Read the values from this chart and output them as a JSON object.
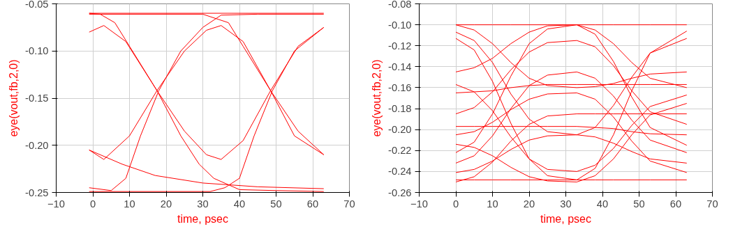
{
  "chart_data": [
    {
      "type": "line",
      "xlabel": "time, psec",
      "ylabel": "eye(vout,fb,2,0)",
      "xlim": [
        -10,
        70
      ],
      "ylim": [
        -0.25,
        -0.05
      ],
      "xticks": [
        -10,
        0,
        10,
        20,
        30,
        40,
        50,
        60,
        70
      ],
      "yticks": [
        {
          "value": -0.25,
          "label": "-0.25"
        },
        {
          "value": -0.2,
          "label": "-0.20"
        },
        {
          "value": -0.15,
          "label": "-0.15"
        },
        {
          "value": -0.1,
          "label": "-0.10"
        },
        {
          "value": -0.05,
          "label": "-0.05"
        }
      ],
      "grid": true,
      "series": [
        {
          "color": "#ff0000",
          "x": [
            -1,
            3,
            9,
            17.5,
            25,
            31,
            35,
            41,
            48.5,
            56,
            63
          ],
          "values": [
            -0.08,
            -0.073,
            -0.09,
            -0.142,
            -0.185,
            -0.21,
            -0.215,
            -0.195,
            -0.142,
            -0.095,
            -0.075
          ]
        },
        {
          "color": "#ff0000",
          "x": [
            -1,
            3,
            10,
            17.5,
            25,
            31,
            35,
            41,
            48.5,
            56,
            63
          ],
          "values": [
            -0.205,
            -0.215,
            -0.19,
            -0.142,
            -0.1,
            -0.078,
            -0.073,
            -0.09,
            -0.142,
            -0.185,
            -0.21
          ]
        },
        {
          "color": "#ff0000",
          "x": [
            -1,
            5,
            9,
            13,
            18,
            24,
            30,
            35,
            45,
            63
          ],
          "values": [
            -0.245,
            -0.248,
            -0.235,
            -0.19,
            -0.142,
            -0.1,
            -0.075,
            -0.062,
            -0.061,
            -0.061
          ]
        },
        {
          "color": "#ff0000",
          "x": [
            -1,
            2,
            6,
            10,
            17.5,
            24,
            29,
            33,
            40,
            50,
            63
          ],
          "values": [
            -0.06,
            -0.061,
            -0.07,
            -0.095,
            -0.142,
            -0.19,
            -0.22,
            -0.235,
            -0.247,
            -0.248,
            -0.249
          ]
        },
        {
          "color": "#ff0000",
          "x": [
            -1,
            8,
            17,
            30,
            45,
            63
          ],
          "values": [
            -0.205,
            -0.22,
            -0.232,
            -0.24,
            -0.244,
            -0.246
          ]
        },
        {
          "color": "#ff0000",
          "x": [
            -1,
            20,
            32,
            36,
            40,
            44,
            49,
            55,
            63
          ],
          "values": [
            -0.249,
            -0.249,
            -0.249,
            -0.245,
            -0.235,
            -0.19,
            -0.142,
            -0.1,
            -0.075
          ]
        },
        {
          "color": "#ff0000",
          "x": [
            -1,
            30,
            37,
            41,
            48.5,
            55,
            63
          ],
          "values": [
            -0.061,
            -0.061,
            -0.07,
            -0.095,
            -0.142,
            -0.19,
            -0.21
          ]
        },
        {
          "color": "#ff0000",
          "x": [
            -1,
            63
          ],
          "values": [
            -0.06,
            -0.06
          ]
        }
      ]
    },
    {
      "type": "line",
      "xlabel": "time, psec",
      "ylabel": "eye(vout,fb,2,0)",
      "xlim": [
        -10,
        70
      ],
      "ylim": [
        -0.26,
        -0.08
      ],
      "xticks": [
        -10,
        0,
        10,
        20,
        30,
        40,
        50,
        60,
        70
      ],
      "yticks": [
        {
          "value": -0.26,
          "label": "-0.26"
        },
        {
          "value": -0.24,
          "label": "-0.24"
        },
        {
          "value": -0.22,
          "label": "-0.22"
        },
        {
          "value": -0.2,
          "label": "-0.20"
        },
        {
          "value": -0.18,
          "label": "-0.18"
        },
        {
          "value": -0.16,
          "label": "-0.16"
        },
        {
          "value": -0.14,
          "label": "-0.14"
        },
        {
          "value": -0.12,
          "label": "-0.12"
        },
        {
          "value": -0.1,
          "label": "-0.10"
        },
        {
          "value": -0.08,
          "label": "-0.08"
        }
      ],
      "grid": true,
      "x": [
        0,
        5,
        10,
        15,
        20,
        25,
        33,
        38,
        43,
        48,
        53,
        63
      ],
      "series": [
        {
          "color": "#ff0000",
          "values": [
            -0.1,
            -0.1,
            -0.1,
            -0.1,
            -0.1,
            -0.1,
            -0.1,
            -0.1,
            -0.1,
            -0.1,
            -0.1,
            -0.1
          ]
        },
        {
          "color": "#ff0000",
          "values": [
            -0.1,
            -0.105,
            -0.118,
            -0.136,
            -0.151,
            -0.158,
            -0.16,
            -0.159,
            -0.156,
            -0.151,
            -0.147,
            -0.145
          ]
        },
        {
          "color": "#ff0000",
          "values": [
            -0.107,
            -0.115,
            -0.136,
            -0.166,
            -0.19,
            -0.202,
            -0.205,
            -0.198,
            -0.177,
            -0.15,
            -0.127,
            -0.113
          ]
        },
        {
          "color": "#ff0000",
          "values": [
            -0.113,
            -0.124,
            -0.154,
            -0.194,
            -0.228,
            -0.244,
            -0.248,
            -0.237,
            -0.205,
            -0.163,
            -0.127,
            -0.106
          ]
        },
        {
          "color": "#ff0000",
          "values": [
            -0.145,
            -0.141,
            -0.132,
            -0.118,
            -0.107,
            -0.101,
            -0.1,
            -0.105,
            -0.118,
            -0.136,
            -0.151,
            -0.16
          ]
        },
        {
          "color": "#ff0000",
          "values": [
            -0.157,
            -0.164,
            -0.182,
            -0.207,
            -0.228,
            -0.238,
            -0.24,
            -0.234,
            -0.218,
            -0.196,
            -0.178,
            -0.167
          ]
        },
        {
          "color": "#ff0000",
          "values": [
            -0.165,
            -0.164,
            -0.163,
            -0.16,
            -0.158,
            -0.157,
            -0.157,
            -0.157,
            -0.157,
            -0.157,
            -0.157,
            -0.157
          ]
        },
        {
          "color": "#ff0000",
          "values": [
            -0.185,
            -0.179,
            -0.164,
            -0.143,
            -0.126,
            -0.117,
            -0.115,
            -0.121,
            -0.139,
            -0.163,
            -0.183,
            -0.195
          ]
        },
        {
          "color": "#ff0000",
          "values": [
            -0.197,
            -0.197,
            -0.197,
            -0.197,
            -0.197,
            -0.197,
            -0.197,
            -0.198,
            -0.199,
            -0.202,
            -0.204,
            -0.205
          ]
        },
        {
          "color": "#ff0000",
          "values": [
            -0.205,
            -0.202,
            -0.193,
            -0.181,
            -0.171,
            -0.166,
            -0.165,
            -0.171,
            -0.188,
            -0.211,
            -0.23,
            -0.241
          ]
        },
        {
          "color": "#ff0000",
          "values": [
            -0.214,
            -0.217,
            -0.225,
            -0.236,
            -0.245,
            -0.249,
            -0.25,
            -0.244,
            -0.228,
            -0.205,
            -0.186,
            -0.175
          ]
        },
        {
          "color": "#ff0000",
          "values": [
            -0.232,
            -0.225,
            -0.206,
            -0.18,
            -0.158,
            -0.148,
            -0.145,
            -0.151,
            -0.168,
            -0.191,
            -0.21,
            -0.222
          ]
        },
        {
          "color": "#ff0000",
          "values": [
            -0.241,
            -0.238,
            -0.23,
            -0.219,
            -0.21,
            -0.206,
            -0.205,
            -0.207,
            -0.213,
            -0.221,
            -0.228,
            -0.232
          ]
        },
        {
          "color": "#ff0000",
          "values": [
            -0.248,
            -0.248,
            -0.248,
            -0.248,
            -0.248,
            -0.248,
            -0.248,
            -0.248,
            -0.248,
            -0.248,
            -0.248,
            -0.248
          ]
        },
        {
          "color": "#ff0000",
          "values": [
            -0.222,
            -0.212,
            -0.185,
            -0.149,
            -0.118,
            -0.104,
            -0.1,
            -0.109,
            -0.135,
            -0.169,
            -0.198,
            -0.215
          ]
        },
        {
          "color": "#ff0000",
          "values": [
            -0.25,
            -0.245,
            -0.231,
            -0.211,
            -0.195,
            -0.187,
            -0.185,
            -0.185,
            -0.185,
            -0.185,
            -0.185,
            -0.185
          ]
        }
      ]
    }
  ]
}
